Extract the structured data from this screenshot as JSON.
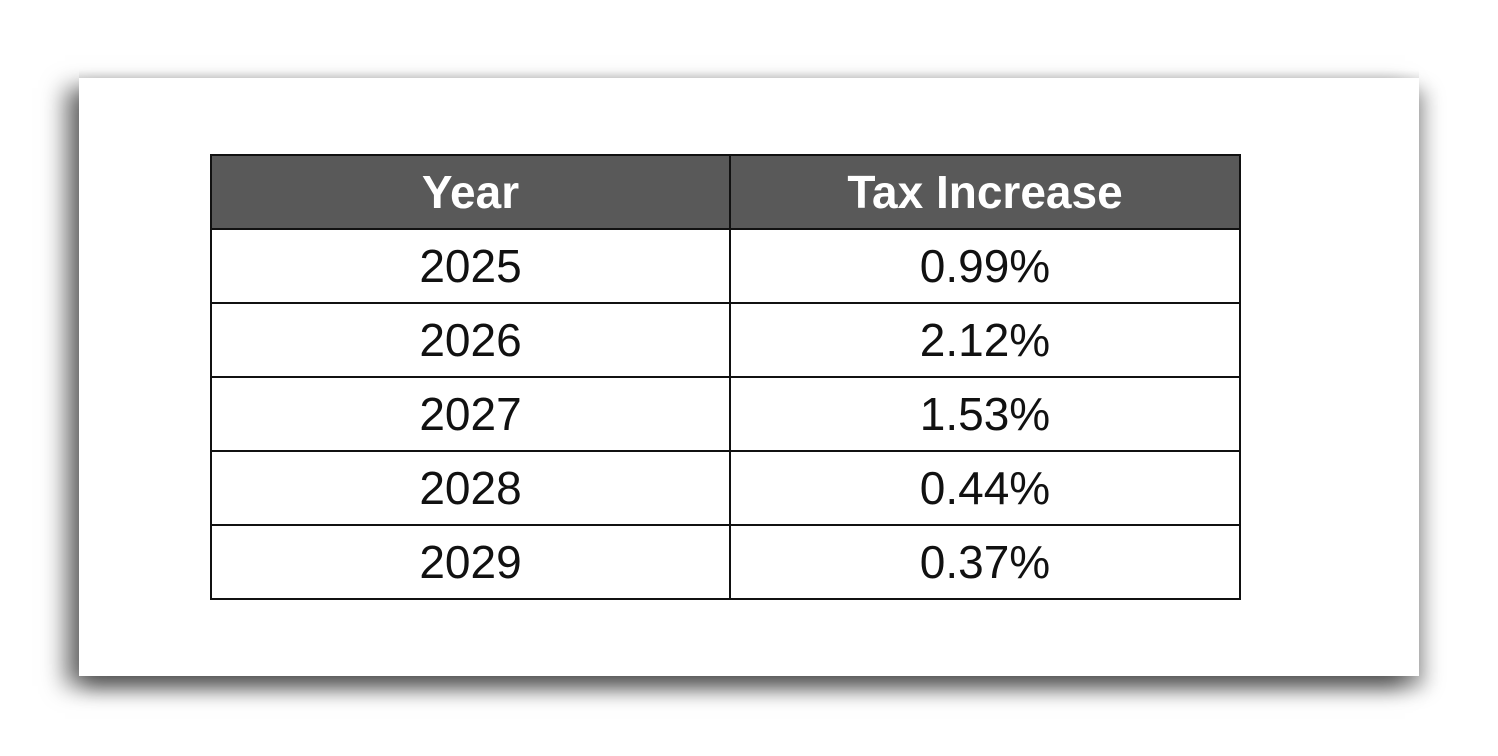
{
  "chart_data": {
    "type": "table",
    "columns": [
      "Year",
      "Tax Increase"
    ],
    "rows": [
      {
        "year": "2025",
        "tax_increase": "0.99%"
      },
      {
        "year": "2026",
        "tax_increase": "2.12%"
      },
      {
        "year": "2027",
        "tax_increase": "1.53%"
      },
      {
        "year": "2028",
        "tax_increase": "0.44%"
      },
      {
        "year": "2029",
        "tax_increase": "0.37%"
      }
    ],
    "x": [
      2025,
      2026,
      2027,
      2028,
      2029
    ],
    "values": [
      0.99,
      2.12,
      1.53,
      0.44,
      0.37
    ]
  },
  "colors": {
    "header_background": "#595959",
    "header_text": "#ffffff",
    "cell_text": "#111111",
    "border": "#111111"
  }
}
